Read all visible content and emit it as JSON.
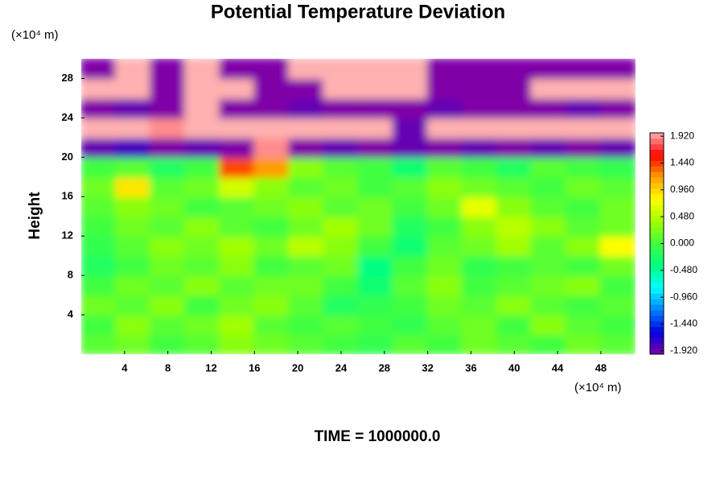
{
  "chart_data": {
    "type": "heatmap",
    "title": "Potential Temperature Deviation",
    "ylabel": "Height",
    "yunit": "(×10⁴ m)",
    "xunit": "(×10⁴ m)",
    "footer": "TIME = 1000000.0",
    "xlim": [
      0,
      51.2
    ],
    "ylim": [
      0,
      30
    ],
    "xticks": [
      4,
      8,
      12,
      16,
      20,
      24,
      28,
      32,
      36,
      40,
      44,
      48
    ],
    "yticks": [
      4,
      8,
      12,
      16,
      20,
      24,
      28
    ],
    "clim": [
      -1.98,
      1.98
    ],
    "colorscale": [
      "#8000a8",
      "#0000e0",
      "#0080ff",
      "#00ffff",
      "#00ff80",
      "#40ff40",
      "#a0ff00",
      "#ffff00",
      "#ffa000",
      "#ff0000",
      "#ffb0b0"
    ],
    "cticks": [
      {
        "value": 1.92,
        "label": "1.920"
      },
      {
        "value": 1.44,
        "label": "1.440"
      },
      {
        "value": 0.96,
        "label": "0.960"
      },
      {
        "value": 0.48,
        "label": "0.480"
      },
      {
        "value": 0,
        "label": "0.000"
      },
      {
        "value": -0.48,
        "label": "-0.480"
      },
      {
        "value": -0.96,
        "label": "-0.960"
      },
      {
        "value": -1.44,
        "label": "-1.440"
      },
      {
        "value": -1.92,
        "label": "-1.920"
      }
    ],
    "z": [
      [
        0.1,
        0.2,
        0,
        0.1,
        0.3,
        0.2,
        0.1,
        0,
        -0.1,
        0.1,
        0,
        0.2,
        0.1,
        0,
        0.2,
        0.1
      ],
      [
        0,
        0.3,
        0.1,
        0.2,
        0.4,
        0.1,
        0,
        0.1,
        0,
        -0.1,
        0.1,
        0.2,
        0,
        0.3,
        0.1,
        0
      ],
      [
        0.2,
        0.1,
        0.3,
        0,
        0.2,
        0.3,
        0.1,
        -0.2,
        -0.1,
        0,
        0.2,
        0.1,
        0.3,
        0.1,
        0,
        0.1
      ],
      [
        0,
        0.2,
        0.1,
        0.3,
        0.1,
        0.2,
        0.2,
        0,
        -0.3,
        0.1,
        0.3,
        0,
        0.1,
        0.2,
        0.3,
        0
      ],
      [
        -0.2,
        0,
        0.2,
        0.1,
        0.3,
        0,
        0.1,
        0.2,
        -0.4,
        0,
        0.2,
        -0.1,
        0,
        0.1,
        0,
        0.2
      ],
      [
        -0.1,
        0.1,
        0.3,
        0.2,
        0.4,
        0.2,
        0.5,
        0.3,
        0,
        -0.3,
        0.1,
        0.2,
        0.4,
        0.1,
        0.3,
        0.8
      ],
      [
        0,
        0.2,
        0.1,
        0.3,
        0.1,
        0,
        0.2,
        0.4,
        0.2,
        -0.2,
        0,
        0.3,
        0.5,
        0.3,
        0.1,
        0.2
      ],
      [
        0.1,
        0.3,
        0.2,
        0,
        0.1,
        0.2,
        0.3,
        0.1,
        0.2,
        0,
        0.2,
        0.7,
        0.3,
        0.1,
        0,
        0.2
      ],
      [
        0.2,
        0.9,
        0.1,
        0.2,
        0.6,
        0.3,
        0.1,
        0.2,
        0,
        0.1,
        0.3,
        0.2,
        0.1,
        0,
        0.2,
        0.1
      ],
      [
        0,
        0.1,
        -0.2,
        0,
        1.4,
        1.2,
        0.3,
        0.1,
        0,
        -0.3,
        0.1,
        0,
        -0.2,
        0.1,
        0,
        -0.1
      ],
      [
        -1.9,
        -1.8,
        -2,
        -1.9,
        -2,
        1.9,
        -2,
        -1.9,
        -2,
        -1.9,
        -2,
        -1.9,
        -2,
        -1.9,
        -2,
        -1.9
      ],
      [
        2,
        2,
        1.9,
        2,
        2,
        2,
        2,
        2,
        2,
        -1.9,
        2,
        2,
        2,
        2,
        2,
        2
      ],
      [
        -2,
        -1.9,
        -2,
        2,
        -2,
        -2,
        -1.9,
        -2,
        -2,
        -2,
        -1.9,
        -2,
        -2,
        -2,
        -1.9,
        -2
      ],
      [
        2,
        2,
        -2,
        2,
        2,
        -2,
        -2,
        2,
        2,
        2,
        -2,
        -2,
        -2,
        2,
        2,
        2
      ],
      [
        -2,
        2,
        -2,
        2,
        -2,
        -2,
        2,
        2,
        2,
        2,
        -2,
        -2,
        -2,
        -2,
        -2,
        -2
      ]
    ]
  }
}
